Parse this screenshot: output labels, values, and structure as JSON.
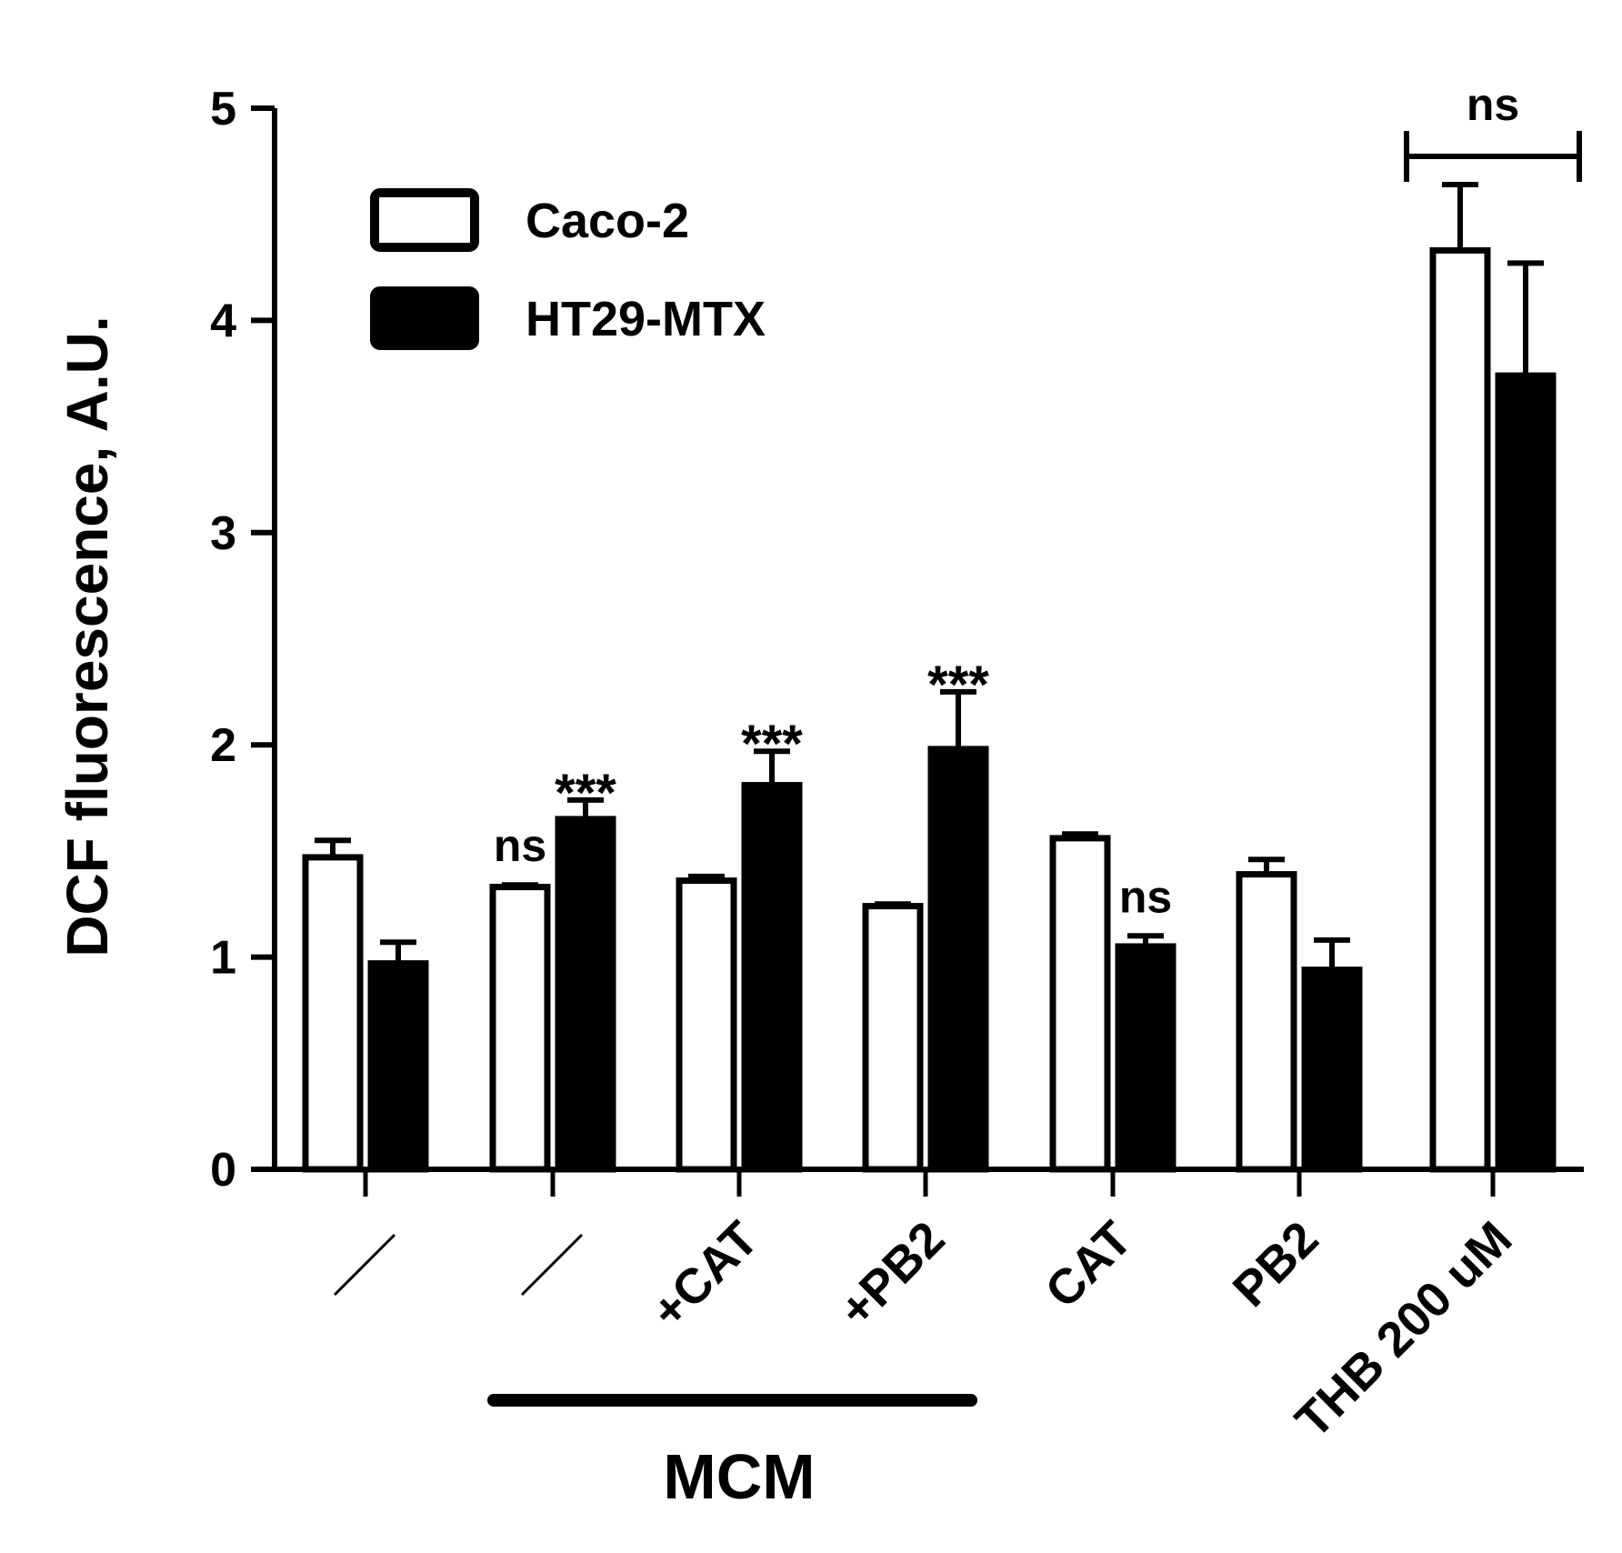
{
  "chart_data": {
    "type": "bar",
    "ylabel": "DCF fluorescence, A.U.",
    "ylim": [
      0,
      5
    ],
    "yticks": [
      "0",
      "1",
      "2",
      "3",
      "4",
      "5"
    ],
    "categories": [
      "/",
      "/",
      "+CAT",
      "+PB2",
      "CAT",
      "PB2",
      "THB 200 uM"
    ],
    "group_label": "MCM",
    "series": [
      {
        "name": "Caco-2",
        "color": "#ffffff",
        "values": [
          1.47,
          1.33,
          1.36,
          1.24,
          1.56,
          1.39,
          4.33
        ],
        "errors": [
          0.08,
          0.01,
          0.02,
          0.01,
          0.02,
          0.07,
          0.31
        ]
      },
      {
        "name": "HT29-MTX",
        "color": "#000000",
        "values": [
          0.97,
          1.65,
          1.81,
          1.98,
          1.05,
          0.94,
          3.74
        ],
        "errors": [
          0.1,
          0.09,
          0.16,
          0.27,
          0.05,
          0.14,
          0.53
        ]
      }
    ],
    "annotations": [
      {
        "category": 1,
        "series": 0,
        "text": "ns"
      },
      {
        "category": 1,
        "series": 1,
        "text": "***"
      },
      {
        "category": 2,
        "series": 1,
        "text": "***"
      },
      {
        "category": 3,
        "series": 1,
        "text": "***"
      },
      {
        "category": 4,
        "series": 1,
        "text": "ns"
      },
      {
        "category": 6,
        "series": -1,
        "text": "ns"
      }
    ],
    "legend_position": "top-left"
  }
}
